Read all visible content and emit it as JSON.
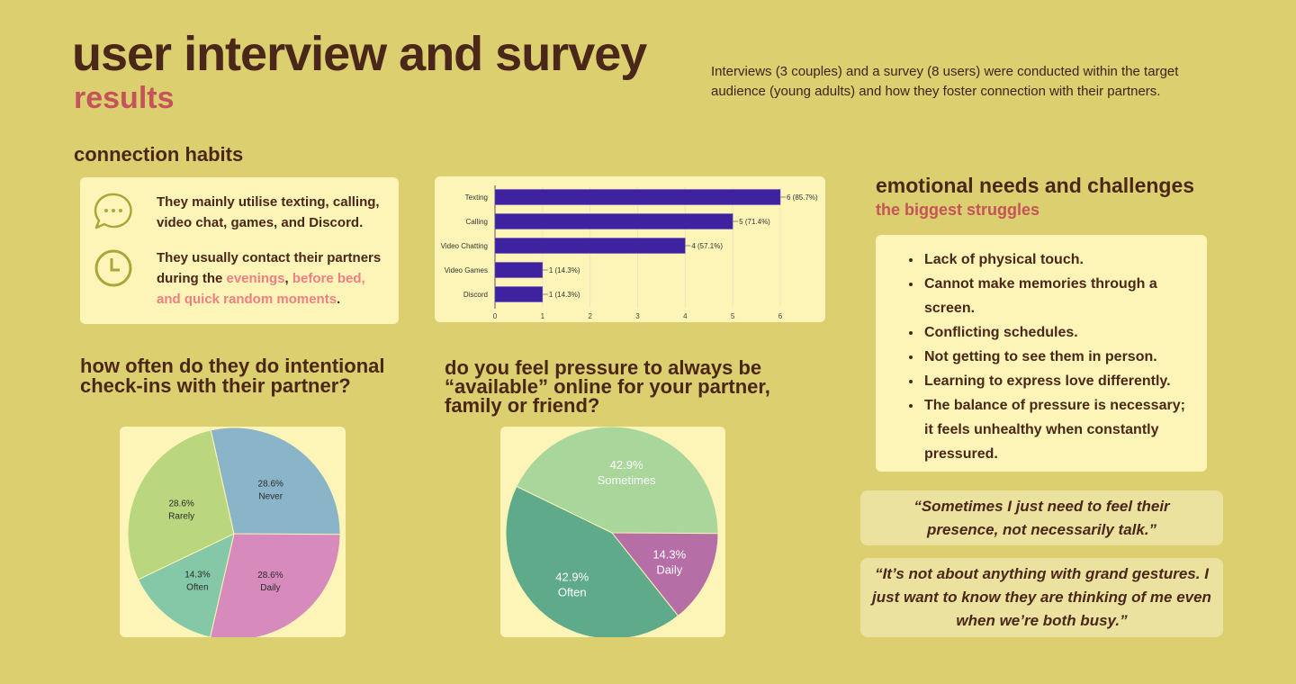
{
  "header": {
    "title": "user interview and survey",
    "subtitle": "results",
    "description": "Interviews (3 couples) and a survey (8 users) were conducted within the target audience (young adults) and how they foster connection with their partners."
  },
  "connection": {
    "heading": "connection habits",
    "item1": "They mainly utilise texting, calling, video chat, games, and  Discord.",
    "item2_pre": "They usually contact their partners during the ",
    "item2_h1": "evenings",
    "item2_mid": ", ",
    "item2_h2": "before bed, and quick random moments",
    "item2_post": "."
  },
  "emotional": {
    "heading": "emotional needs and challenges",
    "subheading": "the biggest struggles",
    "items": [
      "Lack of physical touch.",
      "Cannot make memories through a screen.",
      "Conflicting schedules.",
      "Not getting to see them in person.",
      "Learning to express love differently.",
      "The balance of pressure is necessary; it feels unhealthy when constantly pressured."
    ]
  },
  "quotes": [
    "“Sometimes I just need to feel their presence, not necessarily talk.”",
    "“It’s not about anything with grand gestures. I just want to know they are thinking of me even when we’re both busy.”"
  ],
  "q1": {
    "heading": "how often do they do intentional check-ins with their partner?"
  },
  "q2": {
    "heading": "do you feel pressure to always be “available” online for your partner, family or friend?"
  },
  "chart_data": [
    {
      "type": "bar",
      "orientation": "horizontal",
      "categories": [
        "Texting",
        "Calling",
        "Video Chatting",
        "Video Games",
        "Discord"
      ],
      "values": [
        6,
        5,
        4,
        1,
        1
      ],
      "labels": [
        "6 (85.7%)",
        "5 (71.4%)",
        "4 (57.1%)",
        "1 (14.3%)",
        "1 (14.3%)"
      ],
      "xlim": [
        0,
        6
      ],
      "xticks": [
        "0",
        "1",
        "2",
        "3",
        "4",
        "5",
        "6"
      ],
      "color": "#3f229f"
    },
    {
      "type": "pie",
      "title": "how often do they do intentional check-ins with their partner?",
      "slices": [
        {
          "label": "Daily",
          "value": 28.6,
          "pct": "28.6%",
          "color": "#d78bbd"
        },
        {
          "label": "Often",
          "value": 14.3,
          "pct": "14.3%",
          "color": "#84c8a8"
        },
        {
          "label": "Rarely",
          "value": 28.6,
          "pct": "28.6%",
          "color": "#bad67f"
        },
        {
          "label": "Never",
          "value": 28.6,
          "pct": "28.6%",
          "color": "#8ab5c8"
        }
      ]
    },
    {
      "type": "pie",
      "title": "do you feel pressure to always be available online?",
      "slices": [
        {
          "label": "Daily",
          "value": 14.3,
          "pct": "14.3%",
          "color": "#b66ea6"
        },
        {
          "label": "Often",
          "value": 42.9,
          "pct": "42.9%",
          "color": "#5faa8a"
        },
        {
          "label": "Sometimes",
          "value": 42.9,
          "pct": "42.9%",
          "color": "#a9d69a"
        }
      ]
    }
  ]
}
